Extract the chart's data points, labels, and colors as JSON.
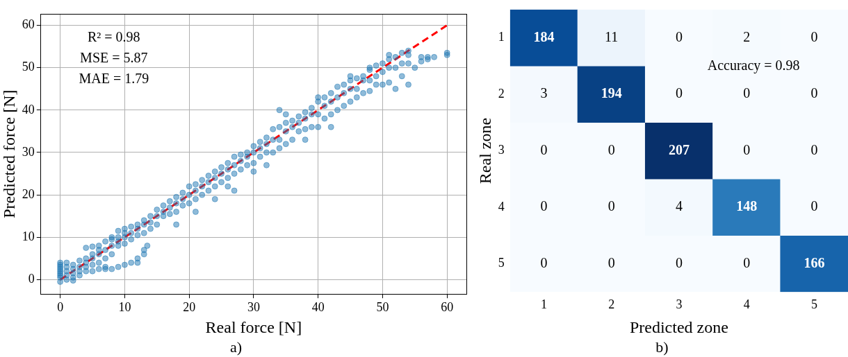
{
  "chart_data": [
    {
      "type": "scatter",
      "xlabel": "Real force [N]",
      "ylabel": "Predicted force [N]",
      "subtitle": "a)",
      "annotations": [
        "R² = 0.98",
        "MSE = 5.87",
        "MAE = 1.79"
      ],
      "xlim": [
        -3,
        63
      ],
      "ylim": [
        -3.4,
        62.7
      ],
      "xticks": [
        0,
        10,
        20,
        30,
        40,
        50,
        60
      ],
      "yticks": [
        0,
        10,
        20,
        30,
        40,
        50,
        60
      ],
      "grid": true,
      "series": [
        {
          "type": "scatter",
          "color": "#1f77b4",
          "marker": "circle",
          "x": [
            0,
            0,
            0,
            0,
            0,
            0,
            0,
            0,
            0,
            1,
            1,
            1,
            1,
            1,
            2,
            2,
            2,
            2,
            2,
            3,
            3,
            3,
            3,
            4,
            4,
            4,
            4,
            4,
            5,
            5,
            5,
            5,
            5,
            6,
            6,
            6,
            6,
            6,
            7,
            7,
            7,
            7,
            7,
            8,
            8,
            8,
            8,
            8,
            9,
            9,
            9,
            9,
            9,
            10,
            10,
            10,
            10,
            10,
            11,
            11,
            11,
            11,
            12,
            12,
            12,
            12,
            12,
            13,
            13,
            13,
            13,
            13,
            13.5,
            14,
            14,
            14,
            15,
            15,
            15,
            16,
            16,
            16,
            17,
            17,
            17,
            18,
            18,
            18,
            18,
            19,
            19,
            19,
            20,
            20,
            20,
            21,
            21,
            21,
            21,
            22,
            22,
            22,
            23,
            23,
            23,
            24,
            24,
            24,
            24,
            25,
            25,
            25,
            26,
            26,
            26,
            26,
            27,
            27,
            27,
            27,
            28,
            28,
            28,
            29,
            29,
            29,
            30,
            30,
            30,
            30,
            31,
            31,
            31,
            32,
            32,
            32,
            32,
            33,
            33,
            33,
            34,
            34,
            34,
            34,
            35,
            35,
            35,
            35,
            36,
            36,
            36,
            37,
            37,
            37,
            38,
            38,
            38,
            38,
            39,
            39,
            39,
            40,
            40,
            40,
            40,
            41,
            41,
            41,
            42,
            42,
            42,
            42,
            43,
            43,
            43,
            44,
            44,
            44,
            45,
            45,
            45,
            45,
            46,
            46,
            46,
            47,
            47,
            47,
            48,
            48,
            48,
            48,
            49,
            49,
            49,
            50,
            50,
            50,
            51,
            51,
            51,
            51,
            52,
            52,
            52,
            53,
            53,
            53,
            54,
            54,
            54,
            54,
            55,
            56,
            56,
            57,
            57,
            58,
            60,
            60
          ],
          "values": [
            -0.5,
            0.5,
            1,
            1.5,
            2,
            2.5,
            3,
            3.5,
            4,
            0,
            1,
            2,
            3,
            4,
            0.5,
            1.5,
            2.5,
            3.5,
            -0.2,
            1,
            2,
            3,
            4.5,
            2,
            3,
            4,
            5,
            7.5,
            2,
            3.5,
            5,
            6,
            7.8,
            2.5,
            4,
            6,
            7,
            8,
            2.5,
            5,
            7,
            9,
            3,
            2.5,
            6,
            8,
            9.5,
            10,
            3,
            8,
            9,
            10,
            11.5,
            3.5,
            8.5,
            10,
            11,
            12,
            4,
            9.5,
            11,
            12.5,
            4,
            5,
            10.5,
            12,
            13,
            6,
            7,
            11,
            13,
            14,
            8,
            12,
            13.5,
            15,
            13,
            15,
            16.5,
            15,
            16,
            17.5,
            15.5,
            17,
            18.5,
            16,
            18,
            19.5,
            13,
            17.5,
            19,
            20.5,
            18,
            20,
            22,
            19,
            21,
            22.5,
            16,
            20,
            22,
            23.5,
            21,
            23,
            24.5,
            22,
            24,
            25.5,
            19,
            23,
            25,
            26.5,
            24,
            26,
            27.5,
            22,
            25,
            27,
            29,
            21,
            26,
            28,
            29.5,
            27,
            29,
            30,
            27.5,
            30,
            31.5,
            25.5,
            29,
            31,
            32.5,
            30,
            32,
            33.5,
            27,
            30,
            33,
            35.5,
            31,
            33,
            36,
            40,
            32,
            35,
            37,
            39,
            33,
            36,
            37.5,
            35,
            37,
            38.5,
            35.5,
            38,
            39.5,
            33,
            36,
            39,
            40.5,
            36,
            39,
            42,
            43,
            38,
            41,
            43,
            39,
            42,
            44,
            36,
            40,
            43,
            45.5,
            41,
            44,
            46,
            42,
            45,
            47,
            48,
            43,
            45,
            47.5,
            44,
            47,
            48,
            44.5,
            47,
            49.5,
            50,
            46,
            48,
            50.5,
            46,
            49,
            51,
            46.5,
            50,
            52,
            53,
            45,
            50,
            52.5,
            48,
            51,
            53.5,
            46,
            51,
            53,
            54,
            50,
            51.5,
            52.5,
            52,
            52.5,
            52.5,
            53,
            53.5
          ]
        },
        {
          "type": "line",
          "color": "#ff0000",
          "marker": "none",
          "line_style": "dashed",
          "x": [
            0,
            60
          ],
          "values": [
            0,
            60
          ]
        }
      ]
    },
    {
      "type": "heatmap",
      "xlabel": "Predicted zone",
      "ylabel": "Real zone",
      "subtitle": "b)",
      "annotations": [
        "Accuracy = 0.98"
      ],
      "data_labels": true,
      "categories": [
        "1",
        "2",
        "3",
        "4",
        "5"
      ],
      "y_categories": [
        "1",
        "2",
        "3",
        "4",
        "5"
      ],
      "cells": [
        [
          184,
          11,
          0,
          2,
          0
        ],
        [
          3,
          194,
          0,
          0,
          0
        ],
        [
          0,
          0,
          207,
          0,
          0
        ],
        [
          0,
          0,
          4,
          148,
          0
        ],
        [
          0,
          0,
          0,
          0,
          166
        ]
      ]
    }
  ]
}
